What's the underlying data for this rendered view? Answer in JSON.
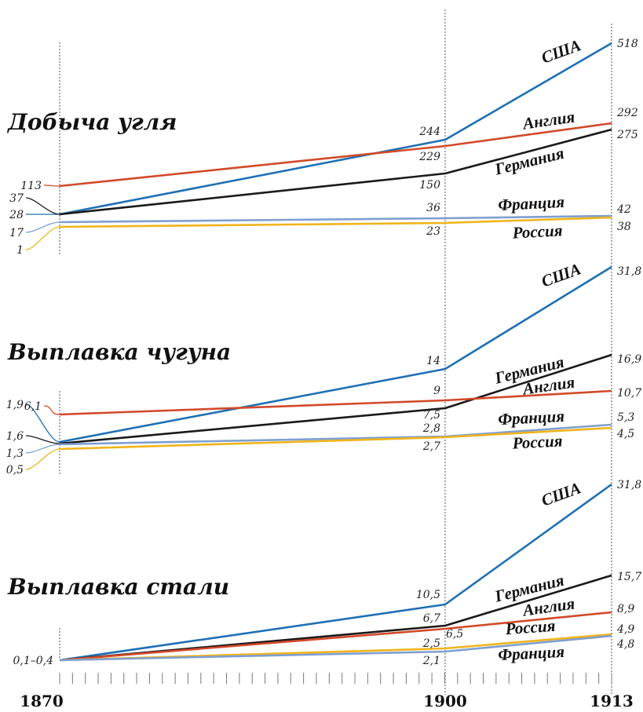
{
  "colors": {
    "США": "#1f70b4",
    "Англия": "#d24a2a",
    "Германия": "#1a1a1a",
    "Франция": "#7f9fd0",
    "Россия": "#f0b41c"
  },
  "years": [
    "1870",
    "1900",
    "1913"
  ],
  "chart_data": [
    {
      "type": "line",
      "title": "Добыча угля",
      "x": [
        "1870",
        "1900",
        "1913"
      ],
      "series": [
        {
          "name": "США",
          "values": [
            28,
            244,
            518
          ],
          "labels": [
            "28",
            "244",
            "518"
          ]
        },
        {
          "name": "Англия",
          "values": [
            113,
            229,
            292
          ],
          "labels": [
            "113",
            "229",
            "292"
          ]
        },
        {
          "name": "Германия",
          "values": [
            37,
            150,
            275
          ],
          "labels": [
            "37",
            "150",
            "275"
          ]
        },
        {
          "name": "Франция",
          "values": [
            17,
            36,
            42
          ],
          "labels": [
            "17",
            "36",
            "42"
          ]
        },
        {
          "name": "Россия",
          "values": [
            1,
            23,
            38
          ],
          "labels": [
            "1",
            "23",
            "38"
          ]
        }
      ]
    },
    {
      "type": "line",
      "title": "Выплавка чугуна",
      "x": [
        "1870",
        "1900",
        "1913"
      ],
      "series": [
        {
          "name": "США",
          "values": [
            1.9,
            14,
            31.8
          ],
          "labels": [
            "1,9",
            "14",
            "31,8"
          ]
        },
        {
          "name": "Германия",
          "values": [
            1.6,
            7.5,
            16.9
          ],
          "labels": [
            "1,6",
            "7,5",
            "16,9"
          ]
        },
        {
          "name": "Англия",
          "values": [
            6.1,
            9,
            10.7
          ],
          "labels": [
            "6,1",
            "9",
            "10,7"
          ]
        },
        {
          "name": "Франция",
          "values": [
            1.3,
            2.8,
            5.3
          ],
          "labels": [
            "1,3",
            "2,8",
            "5,3"
          ]
        },
        {
          "name": "Россия",
          "values": [
            0.5,
            2.7,
            4.5
          ],
          "labels": [
            "0,5",
            "2,7",
            "4,5"
          ]
        }
      ]
    },
    {
      "type": "line",
      "title": "Выплавка стали",
      "x": [
        "1870",
        "1900",
        "1913"
      ],
      "start_label": "0,1–0,4",
      "series": [
        {
          "name": "США",
          "values": [
            0.1,
            10.5,
            31.8
          ],
          "labels": [
            "",
            "10,5",
            "31,8"
          ]
        },
        {
          "name": "Германия",
          "values": [
            0.1,
            6.7,
            15.7
          ],
          "labels": [
            "",
            "6,7",
            "15,7"
          ]
        },
        {
          "name": "Англия",
          "values": [
            0.4,
            6.5,
            8.9
          ],
          "labels": [
            "",
            "6,5",
            "8,9"
          ]
        },
        {
          "name": "Россия",
          "values": [
            0.1,
            2.5,
            4.9
          ],
          "labels": [
            "",
            "2,5",
            "4,9"
          ]
        },
        {
          "name": "Франция",
          "values": [
            0.1,
            2.1,
            4.8
          ],
          "labels": [
            "",
            "2,1",
            "4,8"
          ]
        }
      ]
    }
  ]
}
